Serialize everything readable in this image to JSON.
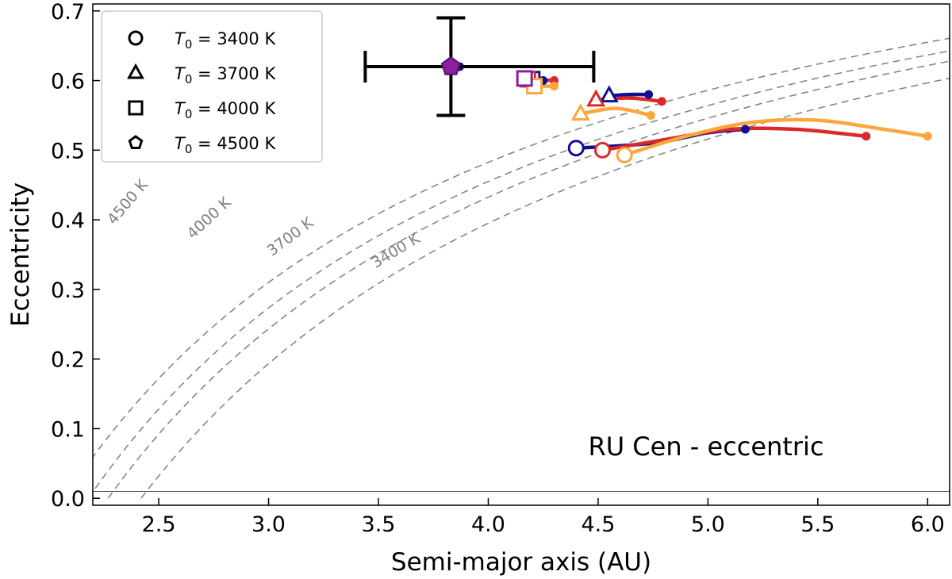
{
  "chart_data": {
    "type": "scatter",
    "title": "",
    "xlabel": "Semi-major axis (AU)",
    "ylabel": "Eccentricity",
    "xlim": [
      2.2,
      6.1
    ],
    "ylim": [
      -0.01,
      0.71
    ],
    "xticks": [
      2.5,
      3.0,
      3.5,
      4.0,
      4.5,
      5.0,
      5.5,
      6.0
    ],
    "yticks": [
      0.0,
      0.1,
      0.2,
      0.3,
      0.4,
      0.5,
      0.6,
      0.7
    ],
    "xtick_labels": [
      "2.5",
      "3.0",
      "3.5",
      "4.0",
      "4.5",
      "5.0",
      "5.5",
      "6.0"
    ],
    "ytick_labels": [
      "0.0",
      "0.1",
      "0.2",
      "0.3",
      "0.4",
      "0.5",
      "0.6",
      "0.7"
    ],
    "annotation": "RU Cen - eccentric",
    "hline": 0.01,
    "legend": [
      {
        "marker": "circle",
        "prefix": "T",
        "sub": "0",
        "text": " = 3400 K"
      },
      {
        "marker": "triangle",
        "prefix": "T",
        "sub": "0",
        "text": " = 3700 K"
      },
      {
        "marker": "square",
        "prefix": "T",
        "sub": "0",
        "text": " = 4000 K"
      },
      {
        "marker": "pentagon",
        "prefix": "T",
        "sub": "0",
        "text": " = 4500 K"
      }
    ],
    "contours": [
      {
        "label": "4500 K",
        "a0": 2.07,
        "label_at": [
          2.36,
          0.425
        ]
      },
      {
        "label": "4000 K",
        "a0": 2.18,
        "label_at": [
          2.73,
          0.402
        ]
      },
      {
        "label": "3700 K",
        "a0": 2.27,
        "label_at": [
          3.1,
          0.375
        ]
      },
      {
        "label": "3400 K",
        "a0": 2.42,
        "label_at": [
          3.58,
          0.355
        ]
      }
    ],
    "observation": {
      "x": 3.83,
      "y": 0.62,
      "xerr": [
        0.39,
        0.65
      ],
      "yerr": [
        0.07,
        0.07
      ],
      "marker_color": "#8B1FA0"
    },
    "colors": {
      "blue": "#0f0f96",
      "red": "#dc2828",
      "orange": "#fba73d",
      "purple": "#8B1FA0",
      "contour": "#808080"
    },
    "series": [
      {
        "name": "T0=3400 K blue",
        "color": "blue",
        "marker": "circle",
        "start": [
          4.4,
          0.503
        ],
        "path": [
          [
            4.4,
            0.503
          ],
          [
            4.75,
            0.51
          ],
          [
            5.0,
            0.525
          ],
          [
            5.17,
            0.53
          ]
        ]
      },
      {
        "name": "T0=3400 K red",
        "color": "red",
        "marker": "circle",
        "start": [
          4.52,
          0.5
        ],
        "path": [
          [
            4.52,
            0.5
          ],
          [
            4.8,
            0.515
          ],
          [
            5.1,
            0.53
          ],
          [
            5.4,
            0.53
          ],
          [
            5.72,
            0.52
          ]
        ]
      },
      {
        "name": "T0=3400 K orange",
        "color": "orange",
        "marker": "circle",
        "start": [
          4.62,
          0.493
        ],
        "path": [
          [
            4.62,
            0.493
          ],
          [
            4.9,
            0.52
          ],
          [
            5.2,
            0.54
          ],
          [
            5.5,
            0.543
          ],
          [
            5.8,
            0.53
          ],
          [
            6.0,
            0.52
          ]
        ]
      },
      {
        "name": "T0=3700 K blue",
        "color": "blue",
        "marker": "triangle",
        "start": [
          4.55,
          0.578
        ],
        "path": [
          [
            4.55,
            0.578
          ],
          [
            4.64,
            0.58
          ],
          [
            4.73,
            0.58
          ]
        ]
      },
      {
        "name": "T0=3700 K red",
        "color": "red",
        "marker": "triangle",
        "start": [
          4.49,
          0.572
        ],
        "path": [
          [
            4.49,
            0.572
          ],
          [
            4.64,
            0.575
          ],
          [
            4.79,
            0.57
          ]
        ]
      },
      {
        "name": "T0=3700 K orange",
        "color": "orange",
        "marker": "triangle",
        "start": [
          4.42,
          0.552
        ],
        "path": [
          [
            4.42,
            0.552
          ],
          [
            4.58,
            0.56
          ],
          [
            4.74,
            0.55
          ]
        ]
      },
      {
        "name": "T0=4000 K blue",
        "color": "blue",
        "marker": "square",
        "start": [
          4.2,
          0.602
        ],
        "path": [
          [
            4.2,
            0.602
          ],
          [
            4.25,
            0.6
          ]
        ]
      },
      {
        "name": "T0=4000 K red",
        "color": "red",
        "marker": "square",
        "start": [
          4.18,
          0.602
        ],
        "path": [
          [
            4.18,
            0.602
          ],
          [
            4.3,
            0.6
          ]
        ]
      },
      {
        "name": "T0=4000 K orange",
        "color": "orange",
        "marker": "square",
        "start": [
          4.21,
          0.592
        ],
        "path": [
          [
            4.21,
            0.592
          ],
          [
            4.3,
            0.592
          ]
        ]
      },
      {
        "name": "T0=4000 K purple",
        "color": "purple",
        "marker": "square",
        "start": [
          4.165,
          0.603
        ],
        "path": []
      },
      {
        "name": "T0=4500 K blue",
        "color": "blue",
        "marker": "pentagon",
        "start": [
          3.83,
          0.62
        ],
        "path": [
          [
            3.83,
            0.62
          ],
          [
            3.87,
            0.62
          ]
        ]
      }
    ],
    "end_dots": [
      {
        "color": "blue",
        "at": [
          5.17,
          0.53
        ]
      },
      {
        "color": "red",
        "at": [
          5.72,
          0.52
        ]
      },
      {
        "color": "orange",
        "at": [
          6.0,
          0.52
        ]
      },
      {
        "color": "blue",
        "at": [
          4.73,
          0.58
        ]
      },
      {
        "color": "red",
        "at": [
          4.79,
          0.57
        ]
      },
      {
        "color": "orange",
        "at": [
          4.74,
          0.55
        ]
      },
      {
        "color": "blue",
        "at": [
          4.25,
          0.6
        ]
      },
      {
        "color": "red",
        "at": [
          4.3,
          0.6
        ]
      },
      {
        "color": "orange",
        "at": [
          4.3,
          0.592
        ]
      },
      {
        "color": "blue",
        "at": [
          3.87,
          0.62
        ]
      }
    ]
  }
}
